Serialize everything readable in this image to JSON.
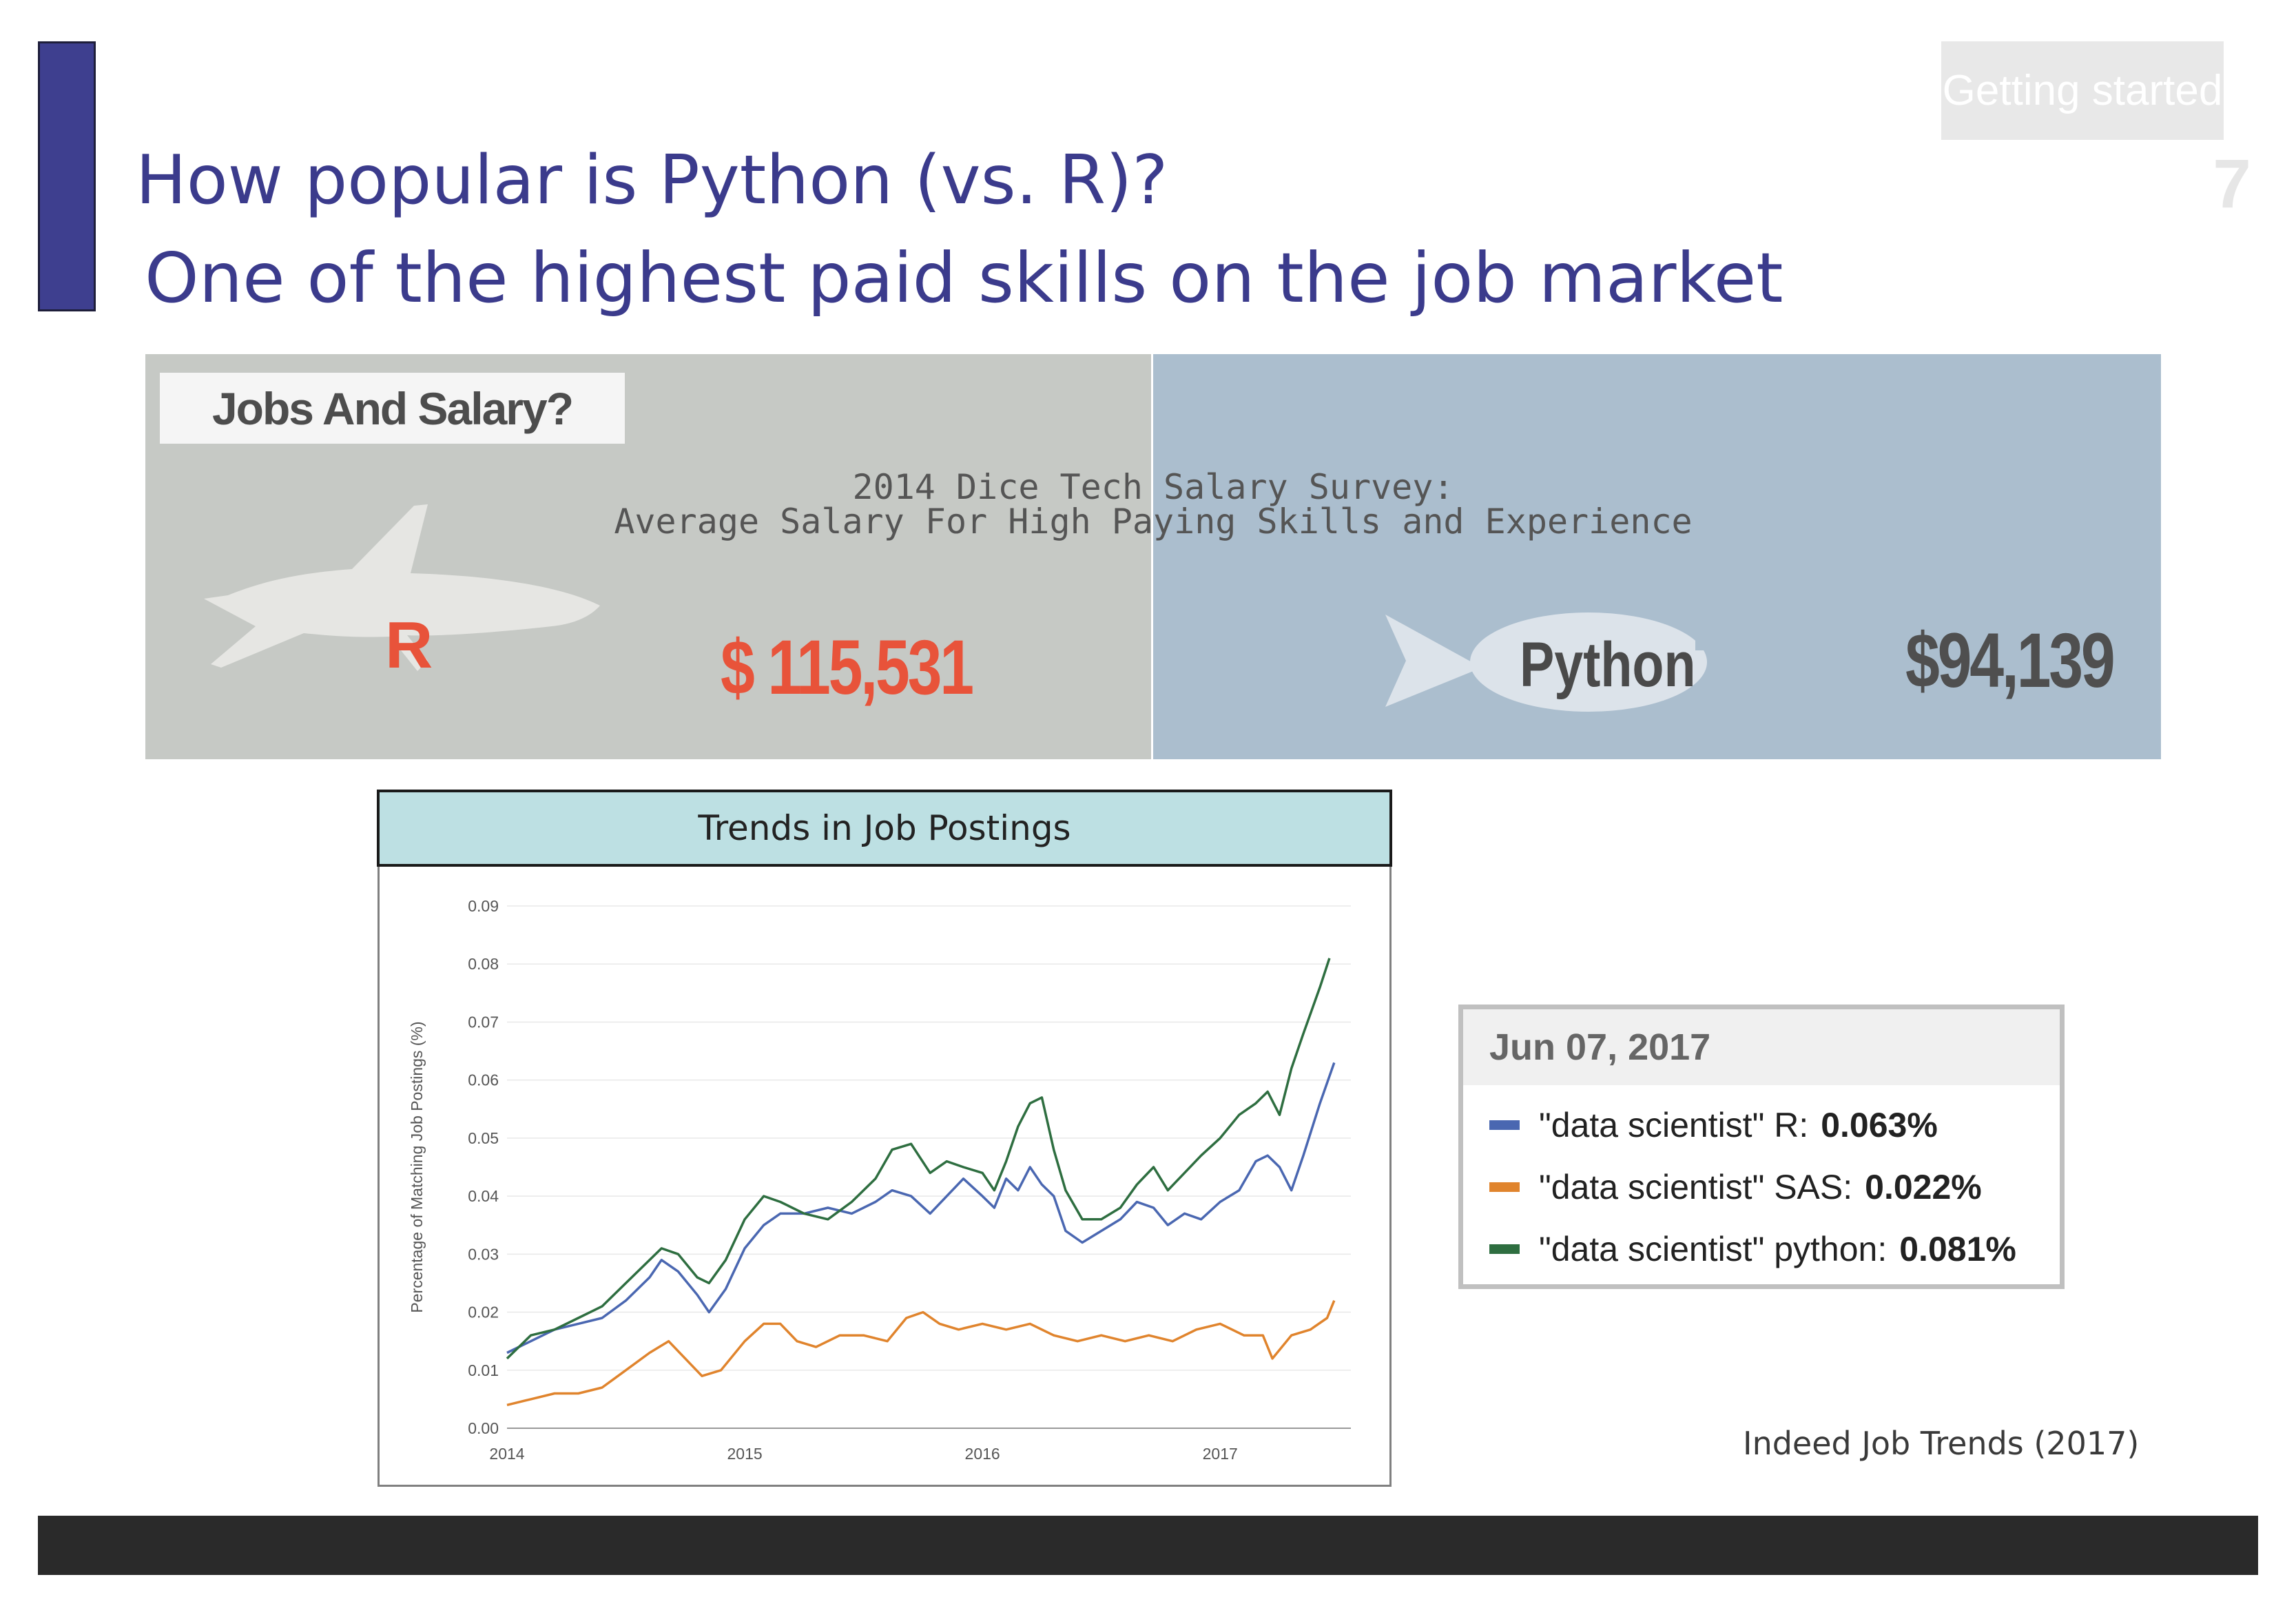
{
  "section": {
    "label": "Getting started",
    "page_number": "7"
  },
  "title": {
    "line1": "How popular is Python (vs. R)?",
    "line2": "One of the highest paid skills on the job market"
  },
  "salary_panel": {
    "label": "Jobs And Salary?",
    "survey_line1": "2014 Dice Tech Salary Survey:",
    "survey_line2": "Average Salary For High Paying Skills and Experience",
    "r": {
      "name": "R",
      "salary": "$ 115,531",
      "color": "#e8533a"
    },
    "python": {
      "name": "Python",
      "salary": "$94,139",
      "color": "#4f4f4f"
    }
  },
  "chart_header": "Trends in Job Postings",
  "chart_data": {
    "type": "line",
    "ylabel": "Percentage of Matching Job Postings (%)",
    "xlabel": "",
    "ylim": [
      0,
      0.09
    ],
    "xlim": [
      2014,
      2017.55
    ],
    "yticks": [
      "0.00",
      "0.01",
      "0.02",
      "0.03",
      "0.04",
      "0.05",
      "0.06",
      "0.07",
      "0.08",
      "0.09"
    ],
    "xticks": [
      "2014",
      "2015",
      "2016",
      "2017"
    ],
    "series": [
      {
        "color": "#4a67b1",
        "points": [
          [
            2014.0,
            0.013
          ],
          [
            2014.1,
            0.015
          ],
          [
            2014.2,
            0.017
          ],
          [
            2014.3,
            0.018
          ],
          [
            2014.4,
            0.019
          ],
          [
            2014.5,
            0.022
          ],
          [
            2014.6,
            0.026
          ],
          [
            2014.65,
            0.029
          ],
          [
            2014.72,
            0.027
          ],
          [
            2014.8,
            0.023
          ],
          [
            2014.85,
            0.02
          ],
          [
            2014.92,
            0.024
          ],
          [
            2015.0,
            0.031
          ],
          [
            2015.08,
            0.035
          ],
          [
            2015.15,
            0.037
          ],
          [
            2015.25,
            0.037
          ],
          [
            2015.35,
            0.038
          ],
          [
            2015.45,
            0.037
          ],
          [
            2015.55,
            0.039
          ],
          [
            2015.62,
            0.041
          ],
          [
            2015.7,
            0.04
          ],
          [
            2015.78,
            0.037
          ],
          [
            2015.85,
            0.04
          ],
          [
            2015.92,
            0.043
          ],
          [
            2016.0,
            0.04
          ],
          [
            2016.05,
            0.038
          ],
          [
            2016.1,
            0.043
          ],
          [
            2016.15,
            0.041
          ],
          [
            2016.2,
            0.045
          ],
          [
            2016.25,
            0.042
          ],
          [
            2016.3,
            0.04
          ],
          [
            2016.35,
            0.034
          ],
          [
            2016.42,
            0.032
          ],
          [
            2016.5,
            0.034
          ],
          [
            2016.58,
            0.036
          ],
          [
            2016.65,
            0.039
          ],
          [
            2016.72,
            0.038
          ],
          [
            2016.78,
            0.035
          ],
          [
            2016.85,
            0.037
          ],
          [
            2016.92,
            0.036
          ],
          [
            2017.0,
            0.039
          ],
          [
            2017.08,
            0.041
          ],
          [
            2017.15,
            0.046
          ],
          [
            2017.2,
            0.047
          ],
          [
            2017.25,
            0.045
          ],
          [
            2017.3,
            0.041
          ],
          [
            2017.35,
            0.047
          ],
          [
            2017.42,
            0.056
          ],
          [
            2017.48,
            0.063
          ]
        ]
      },
      {
        "color": "#e0842d",
        "points": [
          [
            2014.0,
            0.004
          ],
          [
            2014.1,
            0.005
          ],
          [
            2014.2,
            0.006
          ],
          [
            2014.3,
            0.006
          ],
          [
            2014.4,
            0.007
          ],
          [
            2014.5,
            0.01
          ],
          [
            2014.6,
            0.013
          ],
          [
            2014.68,
            0.015
          ],
          [
            2014.75,
            0.012
          ],
          [
            2014.82,
            0.009
          ],
          [
            2014.9,
            0.01
          ],
          [
            2015.0,
            0.015
          ],
          [
            2015.08,
            0.018
          ],
          [
            2015.15,
            0.018
          ],
          [
            2015.22,
            0.015
          ],
          [
            2015.3,
            0.014
          ],
          [
            2015.4,
            0.016
          ],
          [
            2015.5,
            0.016
          ],
          [
            2015.6,
            0.015
          ],
          [
            2015.68,
            0.019
          ],
          [
            2015.75,
            0.02
          ],
          [
            2015.82,
            0.018
          ],
          [
            2015.9,
            0.017
          ],
          [
            2016.0,
            0.018
          ],
          [
            2016.1,
            0.017
          ],
          [
            2016.2,
            0.018
          ],
          [
            2016.3,
            0.016
          ],
          [
            2016.4,
            0.015
          ],
          [
            2016.5,
            0.016
          ],
          [
            2016.6,
            0.015
          ],
          [
            2016.7,
            0.016
          ],
          [
            2016.8,
            0.015
          ],
          [
            2016.9,
            0.017
          ],
          [
            2017.0,
            0.018
          ],
          [
            2017.1,
            0.016
          ],
          [
            2017.18,
            0.016
          ],
          [
            2017.22,
            0.012
          ],
          [
            2017.3,
            0.016
          ],
          [
            2017.38,
            0.017
          ],
          [
            2017.45,
            0.019
          ],
          [
            2017.48,
            0.022
          ]
        ]
      },
      {
        "color": "#2e6e40",
        "points": [
          [
            2014.0,
            0.012
          ],
          [
            2014.1,
            0.016
          ],
          [
            2014.2,
            0.017
          ],
          [
            2014.3,
            0.019
          ],
          [
            2014.4,
            0.021
          ],
          [
            2014.5,
            0.025
          ],
          [
            2014.6,
            0.029
          ],
          [
            2014.65,
            0.031
          ],
          [
            2014.72,
            0.03
          ],
          [
            2014.8,
            0.026
          ],
          [
            2014.85,
            0.025
          ],
          [
            2014.92,
            0.029
          ],
          [
            2015.0,
            0.036
          ],
          [
            2015.08,
            0.04
          ],
          [
            2015.15,
            0.039
          ],
          [
            2015.25,
            0.037
          ],
          [
            2015.35,
            0.036
          ],
          [
            2015.45,
            0.039
          ],
          [
            2015.55,
            0.043
          ],
          [
            2015.62,
            0.048
          ],
          [
            2015.7,
            0.049
          ],
          [
            2015.78,
            0.044
          ],
          [
            2015.85,
            0.046
          ],
          [
            2015.92,
            0.045
          ],
          [
            2016.0,
            0.044
          ],
          [
            2016.05,
            0.041
          ],
          [
            2016.1,
            0.046
          ],
          [
            2016.15,
            0.052
          ],
          [
            2016.2,
            0.056
          ],
          [
            2016.25,
            0.057
          ],
          [
            2016.3,
            0.048
          ],
          [
            2016.35,
            0.041
          ],
          [
            2016.42,
            0.036
          ],
          [
            2016.5,
            0.036
          ],
          [
            2016.58,
            0.038
          ],
          [
            2016.65,
            0.042
          ],
          [
            2016.72,
            0.045
          ],
          [
            2016.78,
            0.041
          ],
          [
            2016.85,
            0.044
          ],
          [
            2016.92,
            0.047
          ],
          [
            2017.0,
            0.05
          ],
          [
            2017.08,
            0.054
          ],
          [
            2017.15,
            0.056
          ],
          [
            2017.2,
            0.058
          ],
          [
            2017.25,
            0.054
          ],
          [
            2017.3,
            0.062
          ],
          [
            2017.35,
            0.068
          ],
          [
            2017.42,
            0.076
          ],
          [
            2017.46,
            0.081
          ]
        ]
      }
    ]
  },
  "tooltip": {
    "date": "Jun 07, 2017",
    "rows": [
      {
        "label": "\"data scientist\" R",
        "value": "0.063%",
        "color": "#4a67b1"
      },
      {
        "label": "\"data scientist\" SAS",
        "value": "0.022%",
        "color": "#e0842d"
      },
      {
        "label": "\"data scientist\" python",
        "value": "0.081%",
        "color": "#2e6e40"
      }
    ]
  },
  "source": "Indeed Job Trends (2017)"
}
